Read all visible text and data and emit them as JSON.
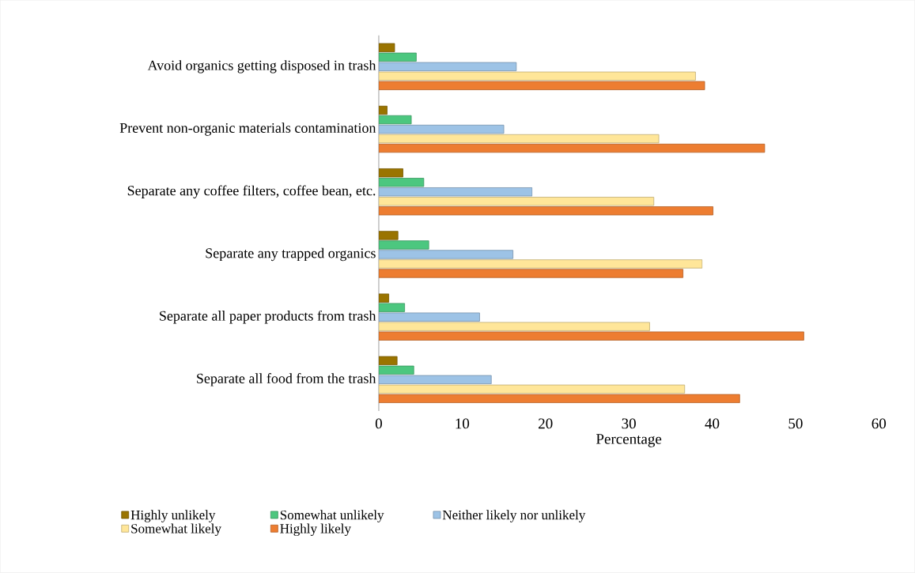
{
  "chart_data": {
    "type": "bar",
    "orientation": "horizontal",
    "xlabel": "Percentage",
    "categories": [
      "Avoid organics getting disposed in trash",
      "Prevent non-organic materials contamination",
      "Separate any coffee filters, coffee bean, etc.",
      "Separate any trapped organics",
      "Separate all paper products from trash",
      "Separate all food  from the trash"
    ],
    "series": [
      {
        "name": "Highly unlikely",
        "color": "#9a7400",
        "values": [
          1.9,
          1.0,
          2.9,
          2.3,
          1.2,
          2.2
        ]
      },
      {
        "name": "Somewhat unlikely",
        "color": "#4cc77f",
        "values": [
          4.5,
          3.9,
          5.4,
          6.0,
          3.1,
          4.2
        ]
      },
      {
        "name": "Neither likely nor unlikely",
        "color": "#9dc3e6",
        "values": [
          16.5,
          15.0,
          18.4,
          16.1,
          12.1,
          13.5
        ]
      },
      {
        "name": "Somewhat likely",
        "color": "#ffe699",
        "values": [
          38.0,
          33.6,
          33.0,
          38.8,
          32.5,
          36.7
        ]
      },
      {
        "name": "Highly likely",
        "color": "#ed7d31",
        "values": [
          39.1,
          46.3,
          40.1,
          36.5,
          51.0,
          43.3
        ]
      }
    ],
    "xlim": [
      0,
      60
    ],
    "xticks": [
      0,
      10,
      20,
      30,
      40,
      50,
      60
    ],
    "grid": false,
    "legend": "bottom"
  }
}
